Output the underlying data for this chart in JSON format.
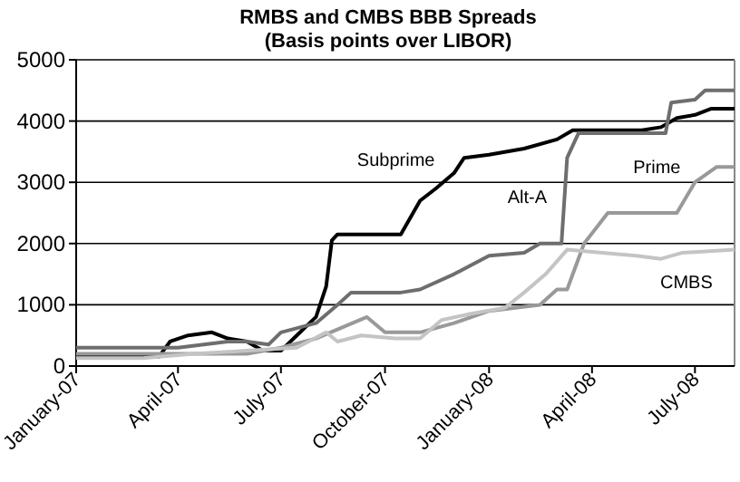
{
  "chart_data": {
    "type": "line",
    "title": "RMBS and CMBS BBB Spreads",
    "subtitle": "(Basis points over LIBOR)",
    "xlim": [
      "2007-01-01",
      "2008-08-05"
    ],
    "xticks": [
      {
        "value": "2007-01-01",
        "label": "January-07"
      },
      {
        "value": "2007-04-01",
        "label": "April-07"
      },
      {
        "value": "2007-07-01",
        "label": "July-07"
      },
      {
        "value": "2007-10-01",
        "label": "October-07"
      },
      {
        "value": "2008-01-01",
        "label": "January-08"
      },
      {
        "value": "2008-04-01",
        "label": "April-08"
      },
      {
        "value": "2008-07-01",
        "label": "July-08"
      }
    ],
    "ylim": [
      0,
      5000
    ],
    "yticks": [
      0,
      1000,
      2000,
      3000,
      4000,
      5000
    ],
    "grid": "y",
    "line_style": "solid",
    "marker": "none",
    "series": [
      {
        "name": "Subprime",
        "color": "#000000",
        "x": [
          "2007-01-01",
          "2007-03-15",
          "2007-03-25",
          "2007-04-10",
          "2007-05-01",
          "2007-05-15",
          "2007-06-01",
          "2007-06-15",
          "2007-07-01",
          "2007-07-15",
          "2007-08-01",
          "2007-08-10",
          "2007-08-15",
          "2007-08-20",
          "2007-10-15",
          "2007-11-01",
          "2007-11-15",
          "2007-12-01",
          "2007-12-10",
          "2008-01-01",
          "2008-02-01",
          "2008-03-01",
          "2008-03-15",
          "2008-05-15",
          "2008-06-01",
          "2008-06-15",
          "2008-07-01",
          "2008-07-15",
          "2008-08-05"
        ],
        "values": [
          150,
          150,
          400,
          500,
          550,
          450,
          400,
          250,
          250,
          500,
          800,
          1300,
          2050,
          2150,
          2150,
          2700,
          2900,
          3150,
          3400,
          3450,
          3550,
          3700,
          3850,
          3850,
          3900,
          4050,
          4100,
          4200,
          4200
        ]
      },
      {
        "name": "Alt-A",
        "color": "#6e6e6e",
        "x": [
          "2007-01-01",
          "2007-04-01",
          "2007-05-15",
          "2007-06-01",
          "2007-06-20",
          "2007-07-01",
          "2007-08-01",
          "2007-08-20",
          "2007-09-01",
          "2007-10-15",
          "2007-11-01",
          "2007-12-01",
          "2008-01-01",
          "2008-02-01",
          "2008-02-15",
          "2008-03-05",
          "2008-03-10",
          "2008-03-20",
          "2008-06-05",
          "2008-06-10",
          "2008-07-01",
          "2008-07-10",
          "2008-08-05"
        ],
        "values": [
          300,
          300,
          400,
          400,
          350,
          550,
          700,
          1000,
          1200,
          1200,
          1250,
          1500,
          1800,
          1850,
          2000,
          2000,
          3400,
          3800,
          3800,
          4300,
          4350,
          4500,
          4500
        ]
      },
      {
        "name": "Prime",
        "color": "#999999",
        "x": [
          "2007-01-01",
          "2007-06-01",
          "2007-07-01",
          "2007-08-01",
          "2007-09-15",
          "2007-10-01",
          "2007-11-01",
          "2007-12-01",
          "2008-01-01",
          "2008-02-15",
          "2008-03-01",
          "2008-03-10",
          "2008-03-25",
          "2008-04-15",
          "2008-06-15",
          "2008-07-01",
          "2008-07-20",
          "2008-08-05"
        ],
        "values": [
          200,
          200,
          300,
          450,
          800,
          550,
          550,
          700,
          900,
          1000,
          1250,
          1250,
          2000,
          2500,
          2500,
          3000,
          3250,
          3250
        ]
      },
      {
        "name": "CMBS",
        "color": "#c4c4c4",
        "x": [
          "2007-01-01",
          "2007-03-01",
          "2007-04-15",
          "2007-06-01",
          "2007-07-15",
          "2007-08-10",
          "2007-08-20",
          "2007-09-10",
          "2007-10-10",
          "2007-11-01",
          "2007-11-20",
          "2007-12-15",
          "2008-01-15",
          "2008-02-01",
          "2008-02-20",
          "2008-03-10",
          "2008-04-10",
          "2008-05-10",
          "2008-06-01",
          "2008-06-20",
          "2008-08-05"
        ],
        "values": [
          130,
          130,
          200,
          250,
          300,
          550,
          400,
          500,
          450,
          450,
          750,
          850,
          950,
          1200,
          1500,
          1900,
          1850,
          1800,
          1750,
          1850,
          1900
        ]
      }
    ]
  }
}
